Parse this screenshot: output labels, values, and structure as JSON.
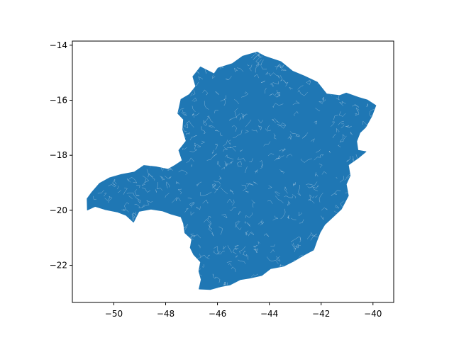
{
  "chart_data": {
    "type": "map",
    "title": "",
    "xlabel": "",
    "ylabel": "",
    "xlim": [
      -51.6,
      -39.2
    ],
    "ylim": [
      -23.35,
      -13.85
    ],
    "x_ticks": [
      -50,
      -48,
      -46,
      -44,
      -42,
      -40
    ],
    "y_ticks": [
      -14,
      -16,
      -18,
      -20,
      -22
    ],
    "x_tick_labels": [
      "−50",
      "−48",
      "−46",
      "−44",
      "−42",
      "−40"
    ],
    "y_tick_labels": [
      "−14",
      "−16",
      "−18",
      "−20",
      "−22"
    ],
    "grid": false,
    "legend": "none",
    "series": [
      {
        "fill_color": "#1f77b4",
        "outline": [
          [
            -46.66,
            -14.79
          ],
          [
            -46.13,
            -15.04
          ],
          [
            -45.98,
            -14.83
          ],
          [
            -45.43,
            -14.67
          ],
          [
            -45.03,
            -14.4
          ],
          [
            -44.47,
            -14.25
          ],
          [
            -44.18,
            -14.4
          ],
          [
            -43.55,
            -14.6
          ],
          [
            -43.11,
            -14.94
          ],
          [
            -42.65,
            -15.12
          ],
          [
            -42.15,
            -15.34
          ],
          [
            -41.79,
            -15.77
          ],
          [
            -41.28,
            -15.83
          ],
          [
            -41.03,
            -15.74
          ],
          [
            -40.55,
            -15.9
          ],
          [
            -40.22,
            -15.99
          ],
          [
            -39.89,
            -16.19
          ],
          [
            -40.05,
            -16.59
          ],
          [
            -40.28,
            -16.98
          ],
          [
            -40.5,
            -17.18
          ],
          [
            -40.63,
            -17.49
          ],
          [
            -40.58,
            -17.82
          ],
          [
            -40.27,
            -17.87
          ],
          [
            -40.57,
            -18.1
          ],
          [
            -40.95,
            -18.35
          ],
          [
            -40.88,
            -18.74
          ],
          [
            -41.03,
            -19.05
          ],
          [
            -40.95,
            -19.47
          ],
          [
            -41.22,
            -19.96
          ],
          [
            -41.55,
            -20.25
          ],
          [
            -41.86,
            -20.52
          ],
          [
            -42.04,
            -20.81
          ],
          [
            -42.17,
            -21.12
          ],
          [
            -42.29,
            -21.44
          ],
          [
            -42.65,
            -21.62
          ],
          [
            -43.02,
            -21.83
          ],
          [
            -43.44,
            -22.03
          ],
          [
            -43.95,
            -22.12
          ],
          [
            -44.29,
            -22.37
          ],
          [
            -44.77,
            -22.47
          ],
          [
            -45.12,
            -22.52
          ],
          [
            -45.51,
            -22.71
          ],
          [
            -45.86,
            -22.77
          ],
          [
            -46.27,
            -22.88
          ],
          [
            -46.71,
            -22.86
          ],
          [
            -46.63,
            -22.52
          ],
          [
            -46.72,
            -22.21
          ],
          [
            -46.65,
            -21.88
          ],
          [
            -46.92,
            -21.61
          ],
          [
            -47.05,
            -21.36
          ],
          [
            -46.99,
            -21.05
          ],
          [
            -47.26,
            -20.82
          ],
          [
            -47.31,
            -20.48
          ],
          [
            -47.41,
            -20.24
          ],
          [
            -47.79,
            -20.14
          ],
          [
            -48.13,
            -20.02
          ],
          [
            -48.57,
            -19.96
          ],
          [
            -49.03,
            -20.04
          ],
          [
            -49.24,
            -20.43
          ],
          [
            -49.53,
            -20.18
          ],
          [
            -49.87,
            -20.06
          ],
          [
            -50.35,
            -19.97
          ],
          [
            -50.72,
            -19.86
          ],
          [
            -51.02,
            -19.99
          ],
          [
            -51.03,
            -19.58
          ],
          [
            -50.86,
            -19.36
          ],
          [
            -50.55,
            -19.02
          ],
          [
            -50.16,
            -18.82
          ],
          [
            -49.72,
            -18.7
          ],
          [
            -49.21,
            -18.61
          ],
          [
            -48.84,
            -18.37
          ],
          [
            -48.37,
            -18.42
          ],
          [
            -47.91,
            -18.51
          ],
          [
            -47.63,
            -18.36
          ],
          [
            -47.36,
            -18.19
          ],
          [
            -47.49,
            -17.82
          ],
          [
            -47.21,
            -17.48
          ],
          [
            -47.34,
            -17.07
          ],
          [
            -47.31,
            -16.7
          ],
          [
            -47.53,
            -16.48
          ],
          [
            -47.41,
            -15.97
          ],
          [
            -47.09,
            -15.79
          ],
          [
            -46.84,
            -15.5
          ],
          [
            -46.95,
            -15.14
          ]
        ]
      }
    ]
  }
}
